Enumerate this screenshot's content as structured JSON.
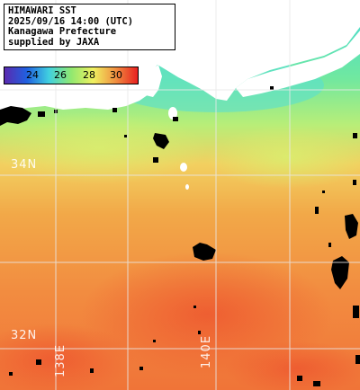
{
  "title": {
    "line1": "HIMAWARI SST",
    "line2": "2025/09/16 14:00 (UTC)",
    "line3": "Kanagawa Prefecture",
    "line4": "supplied by JAXA"
  },
  "colorbar": {
    "ticks": [
      "24",
      "26",
      "28",
      "30"
    ],
    "colors": {
      "violet": "#5a2ab0",
      "blue": "#2060e0",
      "cyan": "#40d0e0",
      "green": "#90e870",
      "yellow": "#f0f060",
      "orange": "#f09040",
      "red": "#e82020"
    }
  },
  "grid": {
    "lat_labels": [
      "34N",
      "32N"
    ],
    "lon_labels": [
      "138E",
      "140E"
    ]
  },
  "colors": {
    "land": "#ffffff",
    "cloud": "#000000",
    "grid": "#e8e8e8"
  }
}
